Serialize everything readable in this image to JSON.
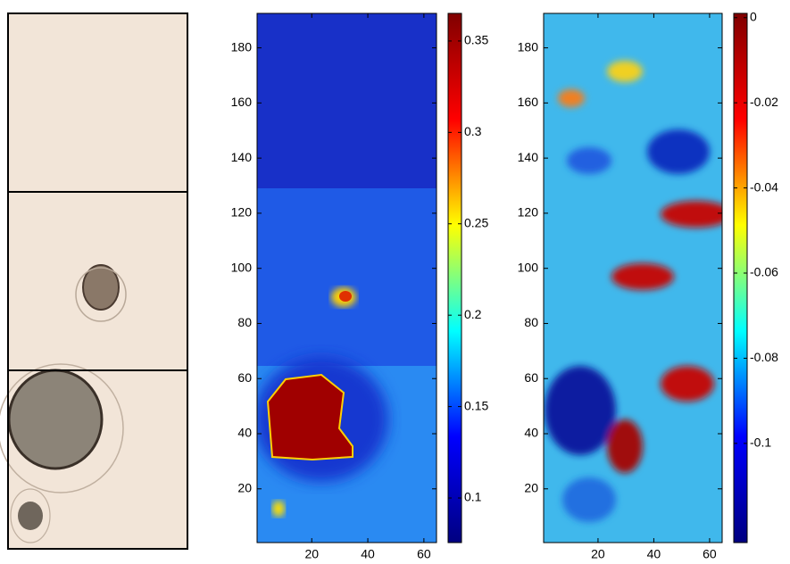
{
  "chart_data": [
    {
      "type": "heatmap",
      "colormap": "jet",
      "xlim": [
        0.5,
        64.5
      ],
      "ylim": [
        0.5,
        192.5
      ],
      "xticks": [
        20,
        40,
        60
      ],
      "yticks": [
        20,
        40,
        60,
        80,
        100,
        120,
        140,
        160,
        180
      ],
      "clim": [
        0.0756,
        0.3651
      ],
      "cticks": [
        0.1,
        0.15,
        0.2,
        0.25,
        0.3,
        0.35
      ]
    },
    {
      "type": "heatmap",
      "colormap": "jet",
      "xlim": [
        0.5,
        64.5
      ],
      "ylim": [
        0.5,
        192.5
      ],
      "xticks": [
        20,
        40,
        60
      ],
      "yticks": [
        20,
        40,
        60,
        80,
        100,
        120,
        140,
        160,
        180
      ],
      "clim": [
        -0.1233,
        0.001
      ],
      "cticks": [
        -0.1,
        -0.08,
        -0.06,
        -0.04,
        -0.02,
        0
      ]
    }
  ]
}
